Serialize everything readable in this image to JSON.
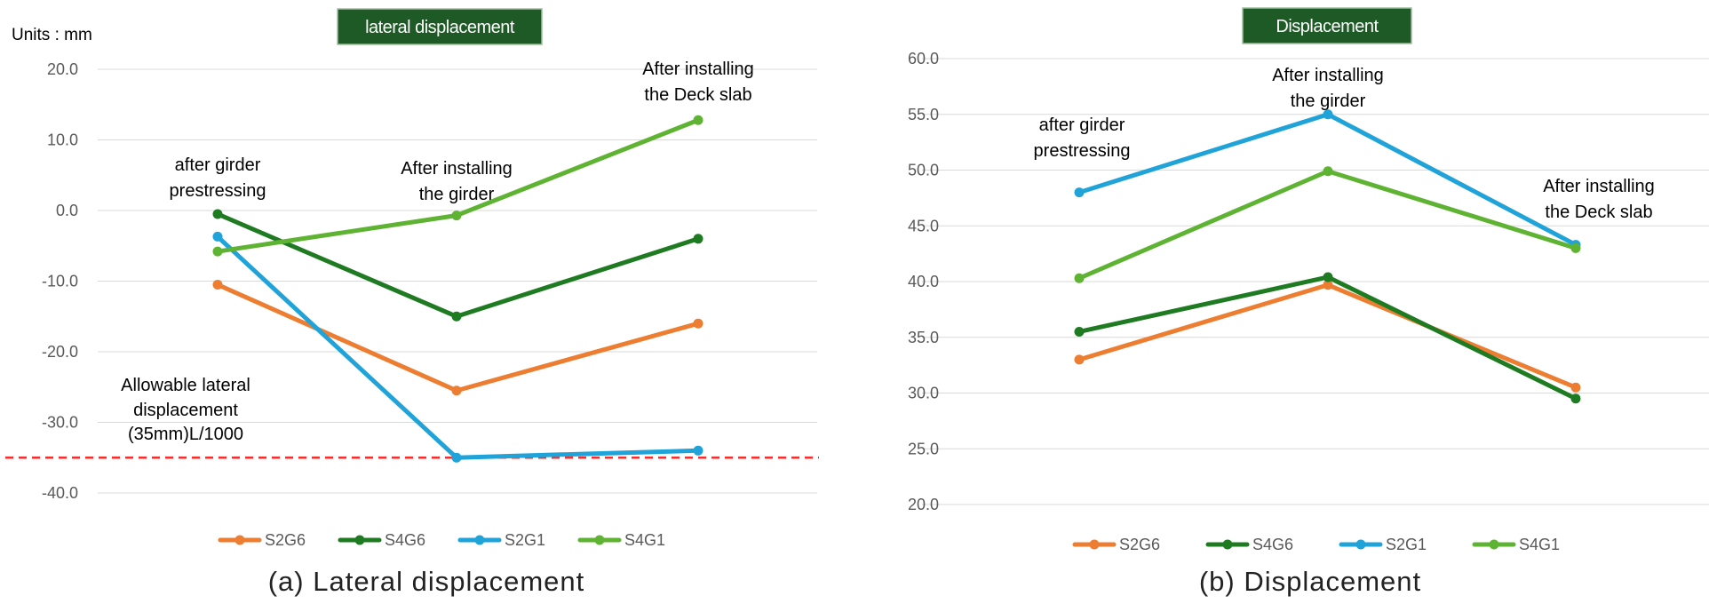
{
  "colors": {
    "S2G6": "#ed7d31",
    "S4G6": "#1e7b22",
    "S2G1": "#1fa3d8",
    "S4G1": "#5fb333",
    "limit": "#ff2a2a"
  },
  "chart_data": [
    {
      "type": "line",
      "title": "lateral displacement",
      "units_label": "Units : mm",
      "caption": "(a)  Lateral  displacement",
      "categories": [
        "after girder prestressing",
        "After installing the girder",
        "After installing the Deck slab"
      ],
      "category_labels": [
        [
          "after girder",
          "prestressing"
        ],
        [
          "After installing",
          "the girder"
        ],
        [
          "After installing",
          "the Deck slab"
        ]
      ],
      "yticks": [
        "20.0",
        "10.0",
        "0.0",
        "-10.0",
        "-20.0",
        "-30.0",
        "-40.0"
      ],
      "ylim": [
        -40,
        20
      ],
      "grid": true,
      "legend": "bottom",
      "series": [
        {
          "name": "S2G6",
          "values": [
            -10.5,
            -25.5,
            -16.0
          ]
        },
        {
          "name": "S4G6",
          "values": [
            -0.5,
            -15.0,
            -4.0
          ]
        },
        {
          "name": "S2G1",
          "values": [
            -3.7,
            -35.0,
            -34.0
          ]
        },
        {
          "name": "S4G1",
          "values": [
            -5.8,
            -0.7,
            12.8
          ]
        }
      ],
      "limit_line": {
        "value": -35,
        "label": [
          "Allowable lateral",
          "displacement",
          "(35mm)L/1000"
        ]
      }
    },
    {
      "type": "line",
      "title": "Displacement",
      "caption": "(b)  Displacement",
      "categories": [
        "after girder prestressing",
        "After installing the girder",
        "After installing the Deck slab"
      ],
      "category_labels": [
        [
          "after girder",
          "prestressing"
        ],
        [
          "After installing",
          "the girder"
        ],
        [
          "After installing",
          "the Deck slab"
        ]
      ],
      "yticks": [
        "60.0",
        "55.0",
        "50.0",
        "45.0",
        "40.0",
        "35.0",
        "30.0",
        "25.0",
        "20.0"
      ],
      "ylim": [
        20,
        60
      ],
      "grid": true,
      "legend": "bottom",
      "series": [
        {
          "name": "S2G6",
          "values": [
            33.0,
            39.7,
            30.5
          ]
        },
        {
          "name": "S4G6",
          "values": [
            35.5,
            40.4,
            29.5
          ]
        },
        {
          "name": "S2G1",
          "values": [
            48.0,
            55.0,
            43.3
          ]
        },
        {
          "name": "S4G1",
          "values": [
            40.3,
            49.9,
            43.0
          ]
        }
      ]
    }
  ]
}
